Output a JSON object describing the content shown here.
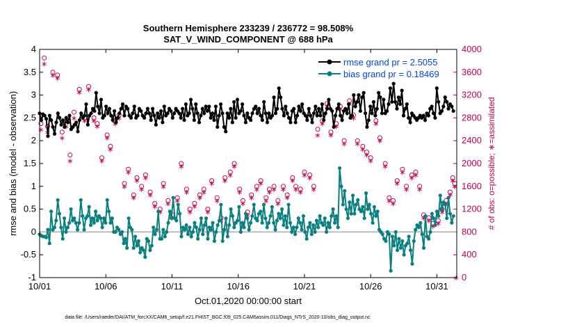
{
  "chart_data": {
    "type": "line",
    "title": "Southern Hemisphere 233239 / 236772 = 98.508%",
    "subtitle": "SAT_V_WIND_COMPONENT @ 688 hPa",
    "xlabel": "Oct.01,2020 00:00:00 start",
    "ylabel": "rmse and bias (model - observation)",
    "y2label": "# of obs: o=possible; ∗=assimilated",
    "footnote": "data file: /Users/raeder/DAI/ATM_forcXX/CAM6_setup/f.e21.FHIST_BGC.f09_025.CAM6assim.011/Diags_NTrS_2020-10/obs_diag_output.nc",
    "xlim": [
      0,
      31.5
    ],
    "ylim": [
      -1,
      4
    ],
    "y2lim": [
      0,
      4000
    ],
    "x_ticks": [
      0,
      5,
      10,
      15,
      20,
      25,
      30
    ],
    "x_tick_labels": [
      "10/01",
      "10/06",
      "10/11",
      "10/16",
      "10/21",
      "10/26",
      "10/31"
    ],
    "y_ticks": [
      -1,
      -0.5,
      0,
      0.5,
      1,
      1.5,
      2,
      2.5,
      3,
      3.5,
      4
    ],
    "y_tick_labels": [
      "-1",
      "-0.5",
      "0",
      "0.5",
      "1",
      "1.5",
      "2",
      "2.5",
      "3",
      "3.5",
      "4"
    ],
    "y2_ticks": [
      0,
      400,
      800,
      1200,
      1600,
      2000,
      2400,
      2800,
      3200,
      3600,
      4000
    ],
    "y2_tick_labels": [
      "0",
      "400",
      "800",
      "1200",
      "1600",
      "2000",
      "2400",
      "2800",
      "3200",
      "3600",
      "4000"
    ],
    "legend_position": "top-right",
    "colors": {
      "rmse": "#000000",
      "bias": "#0a7f7f",
      "obs": "#c8004f",
      "zero": "#aaaaaa"
    },
    "series": [
      {
        "name": "rmse grand pr = 2.5055",
        "axis": "left",
        "values": [
          2.6,
          2.45,
          2.58,
          2.55,
          2.48,
          2.1,
          2.55,
          2.45,
          2.3,
          2.15,
          2.4,
          2.6,
          2.5,
          2.35,
          2.45,
          2.3,
          2.5,
          2.4,
          2.55,
          2.25,
          2.3,
          2.35,
          2.4,
          2.2,
          2.45,
          2.6,
          2.5,
          2.55,
          2.8,
          2.35,
          2.55,
          2.6,
          2.7,
          2.65,
          3.05,
          2.75,
          2.6,
          2.9,
          2.5,
          2.55,
          2.75,
          2.6,
          2.7,
          2.55,
          2.45,
          2.65,
          2.4,
          2.5,
          2.6,
          2.7,
          2.8,
          2.55,
          2.75,
          2.7,
          2.55,
          2.5,
          2.6,
          2.75,
          2.5,
          2.55,
          2.7,
          2.65,
          2.55,
          2.5,
          2.6,
          2.7,
          2.6,
          2.45,
          2.7,
          2.55,
          2.35,
          2.6,
          2.5,
          2.65,
          2.4,
          2.75,
          2.55,
          2.6,
          2.7,
          2.65,
          2.5,
          2.6,
          2.7,
          2.65,
          2.6,
          2.5,
          2.7,
          2.45,
          2.8,
          2.55,
          2.6,
          2.9,
          2.7,
          2.45,
          2.8,
          2.6,
          2.4,
          2.55,
          2.7,
          2.6,
          2.75,
          2.65,
          2.75,
          2.5,
          2.6,
          2.45,
          2.75,
          2.3,
          2.55,
          2.8,
          2.6,
          2.3,
          2.2,
          2.6,
          2.5,
          2.7,
          2.4,
          2.85,
          2.5,
          2.9,
          2.6,
          2.65,
          2.8,
          2.55,
          2.4,
          2.6,
          2.5,
          2.45,
          2.6,
          2.7,
          2.75,
          2.6,
          2.7,
          2.55,
          2.45,
          2.85,
          2.6,
          2.4,
          2.6,
          2.5,
          2.55,
          2.95,
          2.6,
          2.7,
          3.15,
          2.95,
          2.7,
          2.55,
          2.75,
          2.6,
          2.5,
          2.4,
          2.65,
          2.7,
          2.4,
          2.55,
          2.75,
          2.65,
          2.8,
          2.6,
          2.55,
          2.45,
          2.7,
          2.55,
          2.4,
          2.6,
          2.75,
          2.55,
          2.7,
          2.55,
          2.8,
          2.45,
          2.6,
          2.7,
          2.9,
          2.7,
          2.65,
          2.3,
          2.55,
          2.7,
          2.8,
          2.55,
          2.45,
          2.65,
          2.7,
          2.6,
          2.8,
          2.5,
          2.55,
          3.0,
          2.75,
          2.85,
          3.0,
          2.65,
          2.95,
          3.05,
          2.6,
          2.3,
          2.45,
          2.75,
          2.6,
          2.85,
          2.55,
          2.7,
          3.05,
          2.95,
          2.6,
          2.9,
          2.6,
          2.65,
          2.8,
          3.15,
          2.85,
          3.25,
          2.85,
          2.7,
          2.95,
          2.8,
          3.1,
          2.55,
          2.7,
          2.8,
          2.5,
          2.4,
          2.6,
          2.55,
          2.5,
          2.45,
          2.5,
          2.55,
          2.5,
          2.55,
          2.45,
          2.6,
          2.55,
          2.7,
          2.75,
          2.6,
          2.5,
          3.15,
          2.85,
          2.6,
          2.65,
          2.75,
          2.95,
          2.85,
          2.7,
          2.8,
          2.75,
          2.65
        ]
      },
      {
        "name": "bias grand pr = 0.18469",
        "axis": "left",
        "values": [
          -0.05,
          -0.08,
          -0.1,
          -0.1,
          -0.12,
          0.05,
          -0.25,
          0.45,
          0.05,
          0.1,
          0.25,
          0.7,
          0.4,
          0.1,
          -0.15,
          0.3,
          0.0,
          0.1,
          0.2,
          0.5,
          0.25,
          0.3,
          0.2,
          0.05,
          0.2,
          0.7,
          0.35,
          0.05,
          0.3,
          0.35,
          0.55,
          0.15,
          0.3,
          0.2,
          0.45,
          0.25,
          0.35,
          0.3,
          0.1,
          0.3,
          0.2,
          0.7,
          0.45,
          0.2,
          0.3,
          0.0,
          0.0,
          0.1,
          0.05,
          -0.05,
          0.0,
          -0.25,
          -0.15,
          -0.35,
          0.3,
          0.1,
          0.05,
          -0.35,
          -0.1,
          -0.3,
          -0.2,
          -0.45,
          -0.35,
          -0.4,
          -0.55,
          -0.15,
          -0.2,
          -0.4,
          -0.3,
          0.1,
          -0.05,
          0.05,
          0.45,
          -0.15,
          -0.15,
          0.05,
          -0.1,
          0.0,
          0.2,
          0.45,
          0.3,
          0.75,
          0.3,
          0.25,
          0.6,
          0.4,
          -0.1,
          0.1,
          0.05,
          0.15,
          -0.05,
          0.1,
          -0.1,
          0.0,
          0.2,
          0.1,
          -0.15,
          0.05,
          0.3,
          -0.05,
          0.15,
          0.3,
          -0.15,
          0.1,
          0.05,
          0.2,
          -0.2,
          0.0,
          0.15,
          0.25,
          0.6,
          -0.2,
          0.05,
          0.3,
          -0.1,
          0.15,
          0.5,
          0.35,
          0.1,
          0.2,
          0.25,
          0.55,
          0.0,
          0.2,
          0.1,
          0.4,
          0.3,
          0.05,
          0.2,
          0.35,
          0.6,
          0.3,
          0.25,
          0.4,
          0.45,
          0.2,
          0.6,
          0.3,
          0.1,
          0.2,
          0.35,
          0.55,
          0.2,
          0.05,
          0.25,
          0.4,
          0.3,
          0.5,
          0.15,
          0.35,
          0.1,
          0.6,
          0.2,
          0.0,
          0.1,
          -0.05,
          0.1,
          0.3,
          0.2,
          0.05,
          0.35,
          0.0,
          -0.15,
          0.1,
          0.2,
          -0.05,
          0.15,
          0.0,
          0.25,
          0.1,
          0.35,
          0.2,
          0.15,
          0.3,
          0.0,
          0.2,
          0.1,
          0.35,
          0.5,
          0.2,
          0.35,
          0.1,
          1.4,
          1.0,
          0.6,
          0.9,
          0.5,
          0.3,
          0.65,
          0.4,
          0.8,
          0.4,
          0.6,
          0.7,
          0.5,
          0.45,
          0.55,
          0.3,
          0.85,
          0.5,
          0.6,
          0.4,
          0.2,
          0.55,
          0.35,
          0.45,
          0.05,
          0.0,
          -0.05,
          -0.15,
          -0.2,
          0.0,
          -0.05,
          -0.85,
          -0.1,
          -0.3,
          0.0,
          -0.4,
          -0.15,
          -0.35,
          -0.2,
          -0.5,
          -0.3,
          -0.25,
          -0.1,
          -0.4,
          -0.7,
          -0.2,
          0.05,
          0.15,
          0.1,
          0.2,
          -0.05,
          -0.35,
          0.35,
          -0.1,
          -0.15,
          0.0,
          0.4,
          0.3,
          0.15,
          0.45,
          0.35,
          0.8,
          0.5,
          0.65,
          0.6,
          0.3,
          0.75,
          0.4,
          0.2,
          0.35
        ]
      }
    ],
    "obs_possible": {
      "axis": "right",
      "points": [
        [
          0.1,
          2700
        ],
        [
          0.35,
          3850
        ],
        [
          0.6,
          2650
        ],
        [
          1.0,
          3600
        ],
        [
          1.35,
          3550
        ],
        [
          1.7,
          2550
        ],
        [
          2.0,
          2750
        ],
        [
          2.3,
          2150
        ],
        [
          2.6,
          2900
        ],
        [
          3.0,
          3300
        ],
        [
          3.4,
          2800
        ],
        [
          3.7,
          3350
        ],
        [
          4.1,
          2800
        ],
        [
          4.35,
          2700
        ],
        [
          4.7,
          2100
        ],
        [
          5.1,
          2500
        ],
        [
          5.35,
          2300
        ],
        [
          5.7,
          2750
        ],
        [
          6.0,
          2850
        ],
        [
          6.4,
          1650
        ],
        [
          6.7,
          1900
        ],
        [
          7.1,
          1450
        ],
        [
          7.35,
          1750
        ],
        [
          7.7,
          1600
        ],
        [
          8.0,
          1800
        ],
        [
          8.35,
          1500
        ],
        [
          8.7,
          1300
        ],
        [
          9.1,
          1200
        ],
        [
          9.35,
          1650
        ],
        [
          9.7,
          1350
        ],
        [
          10.0,
          1100
        ],
        [
          10.4,
          1400
        ],
        [
          10.7,
          2000
        ],
        [
          11.1,
          1550
        ],
        [
          11.35,
          1200
        ],
        [
          11.7,
          1300
        ],
        [
          12.1,
          1450
        ],
        [
          12.4,
          1550
        ],
        [
          12.7,
          1200
        ],
        [
          13.0,
          1700
        ],
        [
          13.4,
          1400
        ],
        [
          13.7,
          1050
        ],
        [
          14.0,
          1750
        ],
        [
          14.4,
          1850
        ],
        [
          14.7,
          2000
        ],
        [
          15.1,
          1550
        ],
        [
          15.35,
          1350
        ],
        [
          15.7,
          1150
        ],
        [
          16.0,
          1450
        ],
        [
          16.4,
          1600
        ],
        [
          16.7,
          1700
        ],
        [
          17.1,
          1400
        ],
        [
          17.35,
          1550
        ],
        [
          17.7,
          1600
        ],
        [
          18.0,
          1350
        ],
        [
          18.4,
          1600
        ],
        [
          18.7,
          1450
        ],
        [
          19.1,
          1750
        ],
        [
          19.35,
          1600
        ],
        [
          19.7,
          1550
        ],
        [
          20.0,
          1850
        ],
        [
          20.4,
          1800
        ],
        [
          20.7,
          1600
        ],
        [
          21.0,
          2600
        ],
        [
          21.35,
          2750
        ],
        [
          21.7,
          3050
        ],
        [
          22.0,
          2550
        ],
        [
          22.4,
          2700
        ],
        [
          22.7,
          3000
        ],
        [
          23.0,
          2400
        ],
        [
          23.4,
          3100
        ],
        [
          23.7,
          2850
        ],
        [
          24.0,
          2400
        ],
        [
          24.4,
          2300
        ],
        [
          24.7,
          2200
        ],
        [
          25.0,
          2100
        ],
        [
          25.4,
          2750
        ],
        [
          25.7,
          2450
        ],
        [
          26.1,
          2000
        ],
        [
          26.4,
          1400
        ],
        [
          26.7,
          1350
        ],
        [
          27.0,
          1700
        ],
        [
          27.4,
          1900
        ],
        [
          27.7,
          1600
        ],
        [
          28.1,
          1800
        ],
        [
          28.4,
          1850
        ],
        [
          28.7,
          1600
        ],
        [
          29.0,
          1100
        ],
        [
          29.4,
          1050
        ],
        [
          29.7,
          950
        ],
        [
          30.1,
          1000
        ],
        [
          30.4,
          1200
        ],
        [
          30.7,
          1350
        ],
        [
          31.0,
          1500
        ],
        [
          31.2,
          1750
        ],
        [
          31.35,
          1650
        ]
      ]
    },
    "obs_assimilated": {
      "axis": "right",
      "points": [
        [
          0.1,
          2600
        ],
        [
          0.35,
          3750
        ],
        [
          0.6,
          2550
        ],
        [
          1.0,
          3550
        ],
        [
          1.35,
          3500
        ],
        [
          1.7,
          2450
        ],
        [
          2.0,
          2650
        ],
        [
          2.3,
          2050
        ],
        [
          2.6,
          2800
        ],
        [
          3.0,
          3250
        ],
        [
          3.4,
          2750
        ],
        [
          3.7,
          3300
        ],
        [
          4.1,
          2750
        ],
        [
          4.35,
          2650
        ],
        [
          4.7,
          2050
        ],
        [
          5.1,
          2450
        ],
        [
          5.35,
          2250
        ],
        [
          5.7,
          2700
        ],
        [
          6.0,
          2800
        ],
        [
          6.4,
          1600
        ],
        [
          6.7,
          1850
        ],
        [
          7.1,
          1400
        ],
        [
          7.35,
          1700
        ],
        [
          7.7,
          1550
        ],
        [
          8.0,
          1750
        ],
        [
          8.35,
          1450
        ],
        [
          8.7,
          1250
        ],
        [
          9.1,
          1150
        ],
        [
          9.35,
          1600
        ],
        [
          9.7,
          1300
        ],
        [
          10.0,
          1050
        ],
        [
          10.4,
          1350
        ],
        [
          10.7,
          1950
        ],
        [
          11.1,
          1500
        ],
        [
          11.35,
          1150
        ],
        [
          11.7,
          1250
        ],
        [
          12.1,
          1400
        ],
        [
          12.4,
          1500
        ],
        [
          12.7,
          1150
        ],
        [
          13.0,
          1650
        ],
        [
          13.4,
          1350
        ],
        [
          13.7,
          1000
        ],
        [
          14.0,
          1700
        ],
        [
          14.4,
          1800
        ],
        [
          14.7,
          1950
        ],
        [
          15.1,
          1500
        ],
        [
          15.35,
          1300
        ],
        [
          15.7,
          1100
        ],
        [
          16.0,
          1400
        ],
        [
          16.4,
          1550
        ],
        [
          16.7,
          1650
        ],
        [
          17.1,
          1350
        ],
        [
          17.35,
          1500
        ],
        [
          17.7,
          1550
        ],
        [
          18.0,
          1300
        ],
        [
          18.4,
          1550
        ],
        [
          18.7,
          1400
        ],
        [
          19.1,
          1700
        ],
        [
          19.35,
          1550
        ],
        [
          19.7,
          1500
        ],
        [
          20.0,
          1800
        ],
        [
          20.4,
          1750
        ],
        [
          20.7,
          1550
        ],
        [
          21.0,
          2500
        ],
        [
          21.35,
          2700
        ],
        [
          21.7,
          3000
        ],
        [
          22.0,
          2500
        ],
        [
          22.4,
          2650
        ],
        [
          22.7,
          2950
        ],
        [
          23.0,
          2350
        ],
        [
          23.4,
          3050
        ],
        [
          23.7,
          2800
        ],
        [
          24.0,
          2350
        ],
        [
          24.4,
          2250
        ],
        [
          24.7,
          2150
        ],
        [
          25.0,
          2050
        ],
        [
          25.4,
          2700
        ],
        [
          25.7,
          2400
        ],
        [
          26.1,
          1950
        ],
        [
          26.4,
          1350
        ],
        [
          26.7,
          1300
        ],
        [
          27.0,
          1650
        ],
        [
          27.4,
          1850
        ],
        [
          27.7,
          1550
        ],
        [
          28.1,
          1750
        ],
        [
          28.4,
          1800
        ],
        [
          28.7,
          1550
        ],
        [
          29.0,
          1050
        ],
        [
          29.4,
          1000
        ],
        [
          29.7,
          900
        ],
        [
          30.1,
          950
        ],
        [
          30.4,
          1150
        ],
        [
          30.7,
          1300
        ],
        [
          31.0,
          1450
        ],
        [
          31.2,
          1700
        ],
        [
          31.35,
          1600
        ],
        [
          31.45,
          0
        ]
      ]
    }
  }
}
